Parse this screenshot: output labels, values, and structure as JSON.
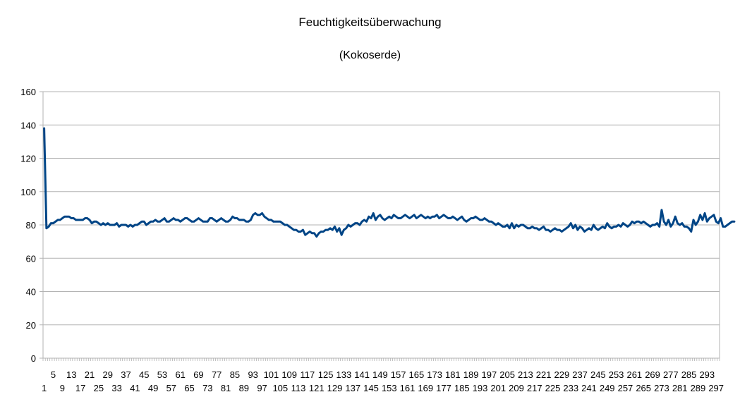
{
  "chart_data": {
    "type": "line",
    "title": "Feuchtigkeitsüberwachung",
    "subtitle": "(Kokoserde)",
    "xlabel": "",
    "ylabel": "",
    "ylim": [
      0,
      160
    ],
    "yticks": [
      0,
      20,
      40,
      60,
      80,
      100,
      120,
      140,
      160
    ],
    "x_start": 1,
    "x_end": 298,
    "x_label_rows": {
      "bottom": [
        1,
        9,
        17,
        25,
        33,
        41,
        49,
        57,
        65,
        73,
        81,
        89,
        97,
        105,
        113,
        121,
        129,
        137,
        145,
        153,
        161,
        169,
        177,
        185,
        193,
        201,
        209,
        217,
        225,
        233,
        241,
        249,
        257,
        265,
        273,
        281,
        289,
        297
      ],
      "top": [
        5,
        13,
        21,
        29,
        37,
        45,
        53,
        61,
        69,
        77,
        85,
        93,
        101,
        109,
        117,
        125,
        133,
        141,
        149,
        157,
        165,
        173,
        181,
        189,
        197,
        205,
        213,
        221,
        229,
        237,
        245,
        253,
        261,
        269,
        277,
        285,
        293
      ]
    },
    "grid": true,
    "line_color": "#004586",
    "grid_color": "#b3b3b3",
    "series": [
      {
        "values": [
          138,
          78,
          79,
          81,
          81,
          82,
          83,
          83,
          84,
          85,
          85,
          85,
          84,
          84,
          83,
          83,
          83,
          83,
          84,
          84,
          83,
          81,
          82,
          82,
          81,
          80,
          81,
          80,
          81,
          80,
          80,
          80,
          81,
          79,
          80,
          80,
          80,
          79,
          80,
          79,
          80,
          80,
          81,
          82,
          82,
          80,
          81,
          82,
          82,
          83,
          82,
          82,
          83,
          84,
          82,
          82,
          83,
          84,
          83,
          83,
          82,
          83,
          84,
          84,
          83,
          82,
          82,
          83,
          84,
          83,
          82,
          82,
          82,
          84,
          84,
          83,
          82,
          83,
          84,
          83,
          82,
          82,
          83,
          85,
          84,
          84,
          83,
          83,
          83,
          82,
          82,
          83,
          86,
          87,
          86,
          86,
          87,
          85,
          84,
          83,
          83,
          82,
          82,
          82,
          82,
          81,
          80,
          80,
          79,
          78,
          77,
          77,
          76,
          76,
          77,
          74,
          75,
          76,
          75,
          75,
          73,
          75,
          76,
          76,
          77,
          77,
          78,
          77,
          79,
          76,
          78,
          74,
          77,
          78,
          80,
          79,
          80,
          81,
          81,
          80,
          82,
          83,
          82,
          85,
          84,
          87,
          83,
          85,
          86,
          84,
          83,
          84,
          85,
          84,
          86,
          85,
          84,
          84,
          85,
          86,
          85,
          84,
          85,
          86,
          84,
          85,
          86,
          85,
          84,
          85,
          84,
          85,
          85,
          86,
          84,
          85,
          86,
          85,
          84,
          84,
          85,
          84,
          83,
          84,
          85,
          83,
          82,
          83,
          84,
          84,
          85,
          84,
          83,
          83,
          84,
          83,
          82,
          82,
          81,
          80,
          81,
          80,
          79,
          79,
          80,
          78,
          81,
          78,
          80,
          79,
          80,
          80,
          79,
          78,
          78,
          79,
          78,
          78,
          77,
          78,
          79,
          77,
          77,
          76,
          77,
          78,
          77,
          77,
          76,
          77,
          78,
          79,
          81,
          78,
          80,
          77,
          79,
          78,
          76,
          77,
          78,
          77,
          80,
          78,
          77,
          78,
          79,
          78,
          81,
          79,
          78,
          79,
          79,
          80,
          79,
          81,
          80,
          79,
          80,
          82,
          81,
          82,
          82,
          81,
          82,
          81,
          80,
          79,
          80,
          80,
          81,
          79,
          89,
          82,
          80,
          83,
          79,
          81,
          85,
          81,
          80,
          81,
          79,
          79,
          78,
          76,
          83,
          80,
          82,
          86,
          83,
          87,
          82,
          84,
          85,
          86,
          82,
          81,
          84,
          79,
          79,
          80,
          81,
          82,
          82
        ]
      }
    ]
  }
}
